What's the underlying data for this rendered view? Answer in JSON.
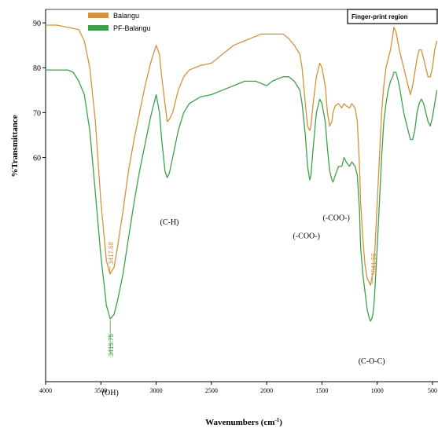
{
  "chart_data": {
    "type": "line",
    "xlabel": "Wavenumbers (cm",
    "xlabel_sup": "-1",
    "xlabel_close": ")",
    "ylabel": "%Transmittance",
    "xlim": [
      4000,
      450
    ],
    "ylim": [
      10,
      93
    ],
    "x_ticks": [
      4000,
      3500,
      3000,
      2500,
      2000,
      1500,
      1000,
      500
    ],
    "y_ticks": [
      90,
      80,
      70,
      60
    ],
    "grid": false,
    "legend_position": "top-left",
    "region_label": "Finger-print region",
    "colors": {
      "Balangu": "#D4923A",
      "PF-Balangu": "#3BA24A"
    },
    "series": [
      {
        "name": "Balangu",
        "x": [
          4000,
          3900,
          3800,
          3700,
          3650,
          3600,
          3550,
          3500,
          3450,
          3417,
          3380,
          3350,
          3300,
          3250,
          3200,
          3150,
          3100,
          3050,
          3000,
          2970,
          2950,
          2920,
          2900,
          2880,
          2850,
          2800,
          2750,
          2700,
          2600,
          2500,
          2400,
          2300,
          2200,
          2100,
          2050,
          2000,
          1950,
          1900,
          1850,
          1800,
          1750,
          1700,
          1680,
          1650,
          1630,
          1610,
          1600,
          1580,
          1550,
          1520,
          1500,
          1470,
          1450,
          1430,
          1410,
          1400,
          1380,
          1350,
          1320,
          1300,
          1280,
          1250,
          1230,
          1200,
          1180,
          1160,
          1150,
          1130,
          1110,
          1090,
          1070,
          1060,
          1050,
          1040,
          1030,
          1020,
          1000,
          980,
          960,
          940,
          920,
          900,
          880,
          860,
          850,
          830,
          800,
          780,
          760,
          740,
          720,
          700,
          680,
          660,
          640,
          620,
          600,
          580,
          560,
          540,
          520,
          500,
          480,
          460
        ],
        "y": [
          89.5,
          89.5,
          89,
          88.5,
          86,
          80,
          68,
          50,
          37,
          34,
          35.5,
          40,
          48,
          57,
          64,
          70,
          76,
          81,
          85,
          83,
          78,
          72,
          68,
          68.5,
          70,
          75,
          78,
          79.5,
          80.5,
          81,
          83,
          85,
          86,
          87,
          87.5,
          87.5,
          87.5,
          87.5,
          87.5,
          86.5,
          85,
          83,
          80,
          72,
          67,
          66,
          67,
          72,
          78,
          81,
          80,
          76,
          70,
          67,
          68,
          70,
          71.5,
          72,
          71,
          72,
          71.5,
          71,
          72,
          71,
          68,
          58,
          50,
          42,
          36,
          33,
          32,
          31.5,
          33,
          34,
          36,
          40,
          50,
          60,
          70,
          76,
          80,
          82,
          84,
          87,
          89,
          88,
          84,
          82,
          80,
          78,
          76,
          74,
          76,
          79,
          82,
          84,
          84,
          82,
          80,
          78,
          78,
          80,
          84,
          86
        ]
      },
      {
        "name": "PF-Balangu",
        "x": [
          4000,
          3900,
          3800,
          3750,
          3700,
          3650,
          3600,
          3550,
          3500,
          3450,
          3415,
          3380,
          3350,
          3300,
          3250,
          3200,
          3150,
          3100,
          3050,
          3000,
          2970,
          2950,
          2920,
          2900,
          2880,
          2850,
          2800,
          2750,
          2700,
          2600,
          2500,
          2400,
          2300,
          2200,
          2100,
          2050,
          2000,
          1950,
          1900,
          1850,
          1800,
          1750,
          1700,
          1680,
          1650,
          1630,
          1610,
          1600,
          1580,
          1550,
          1520,
          1500,
          1470,
          1450,
          1430,
          1410,
          1400,
          1380,
          1350,
          1320,
          1300,
          1280,
          1250,
          1230,
          1200,
          1180,
          1160,
          1150,
          1130,
          1110,
          1090,
          1070,
          1060,
          1050,
          1040,
          1030,
          1020,
          1000,
          980,
          960,
          940,
          920,
          900,
          880,
          860,
          850,
          830,
          800,
          780,
          760,
          740,
          720,
          700,
          680,
          660,
          640,
          620,
          600,
          580,
          560,
          540,
          520,
          500,
          480,
          460
        ],
        "y": [
          79.5,
          79.5,
          79.5,
          79,
          77,
          74,
          66,
          52,
          38,
          27,
          24,
          25,
          28,
          34,
          42,
          50,
          57,
          63,
          69,
          74,
          70,
          64,
          57,
          55.5,
          56.5,
          60,
          66,
          70,
          72,
          73.5,
          74,
          75,
          76,
          77,
          77,
          76.5,
          76,
          77,
          77.5,
          78,
          78,
          77,
          75,
          72,
          65,
          58,
          55,
          56,
          62,
          70,
          73,
          72,
          68,
          62,
          57,
          55,
          54.5,
          56,
          58,
          58,
          60,
          59,
          58,
          59,
          58,
          56,
          48,
          40,
          34,
          30,
          26,
          24,
          23.5,
          24,
          25,
          27,
          31,
          40,
          50,
          60,
          68,
          72,
          75,
          77,
          78,
          79,
          79,
          76,
          73,
          70,
          68,
          66,
          64,
          64,
          66,
          70,
          72,
          73,
          72,
          70,
          68,
          67,
          69,
          72,
          75
        ]
      }
    ],
    "peaks": [
      {
        "series": "Balangu",
        "label": "3417.68",
        "x": 3417.68,
        "y": 34
      },
      {
        "series": "PF-Balangu",
        "label": "3415.75",
        "x": 3415.75,
        "y": 24
      },
      {
        "series": "Balangu",
        "label": "1041.66",
        "x": 1041.66,
        "y": 31.5
      }
    ],
    "annotations": [
      {
        "label": "(OH)",
        "x": 3415,
        "y": 7
      },
      {
        "label": "(C-H)",
        "x": 2880,
        "y": 45
      },
      {
        "label": "(-COO-)",
        "x": 1640,
        "y": 42
      },
      {
        "label": "(-COO-)",
        "x": 1370,
        "y": 46
      },
      {
        "label": "(C-O-C)",
        "x": 1050,
        "y": 14
      }
    ]
  }
}
